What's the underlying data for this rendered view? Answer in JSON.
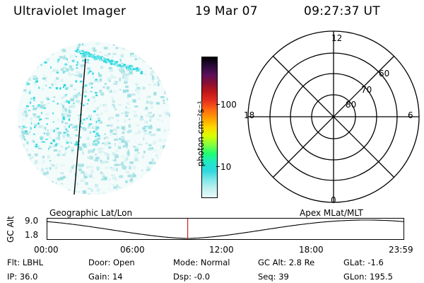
{
  "header": {
    "title": "Ultraviolet Imager",
    "date": "19 Mar 07",
    "time": "09:27:37 UT"
  },
  "colorbar": {
    "unit_label": "photon cm⁻²s⁻¹",
    "ticks": [
      "100",
      "10"
    ],
    "colors": [
      "#000000",
      "#2a0a3a",
      "#5a0f5a",
      "#8a1030",
      "#c01818",
      "#e83020",
      "#ff6a10",
      "#ffa000",
      "#ffd800",
      "#d8ff00",
      "#80ff40",
      "#20ff70",
      "#20e8c8",
      "#30d8e0",
      "#80e8e8",
      "#c0f0f0",
      "#e8fafa"
    ]
  },
  "polar_plot": {
    "mlt_labels": {
      "top": "12",
      "left": "18",
      "right": "6",
      "bottom": "0"
    },
    "lat_labels": [
      "60",
      "70",
      "80"
    ]
  },
  "timeline": {
    "left_title": "Geographic Lat/Lon",
    "right_title": "Apex  MLat/MLT",
    "y_axis_label": "GC Alt",
    "y_ticks": [
      "9.0",
      "1.8"
    ],
    "x_ticks": [
      "00:00",
      "06:00",
      "12:00",
      "18:00",
      "23:59"
    ],
    "marker_time_hours": 9.46,
    "marker_color": "#cc2222"
  },
  "status": {
    "flt": "Flt: LBHL",
    "ip": "IP: 36.0",
    "door": "Door: Open",
    "gain": "Gain: 14",
    "mode": "Mode: Normal",
    "dsp": "Dsp:     -0.0",
    "gcalt": "GC Alt: 2.8 Re",
    "seq": "Seq: 39",
    "glat": "GLat:   -1.6",
    "glon": "GLon: 195.5"
  }
}
